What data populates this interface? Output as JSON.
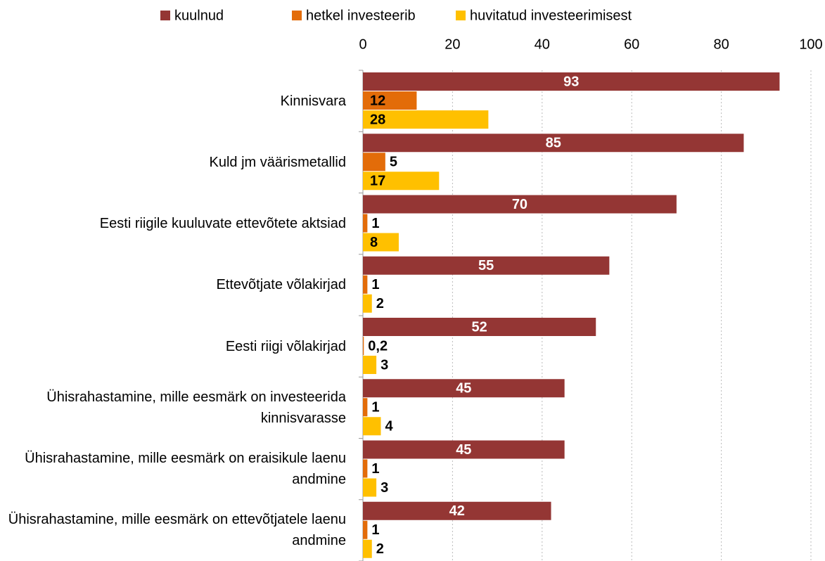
{
  "chart_data": {
    "type": "bar",
    "orientation": "horizontal",
    "categories": [
      "Kinnisvara",
      "Kuld jm väärismetallid",
      "Eesti riigile kuuluvate ettevõtete aktsiad",
      "Ettevõtjate võlakirjad",
      "Eesti riigi võlakirjad",
      "Ühisrahastamine, mille eesmärk on investeerida kinnisvarasse",
      "Ühisrahastamine, mille eesmärk on eraisikule laenu andmine",
      "Ühisrahastamine, mille eesmärk on ettevõtjatele laenu andmine"
    ],
    "series": [
      {
        "name": "kuulnud",
        "color": "#943634",
        "values": [
          93,
          85,
          70,
          55,
          52,
          45,
          45,
          42
        ]
      },
      {
        "name": "hetkel investeerib",
        "color": "#e36c09",
        "values": [
          12,
          5,
          1,
          1,
          0.2,
          1,
          1,
          1
        ],
        "value_labels": [
          "12",
          "5",
          "1",
          "1",
          "0,2",
          "1",
          "1",
          "1"
        ]
      },
      {
        "name": "huvitatud investeerimisest",
        "color": "#ffc000",
        "values": [
          28,
          17,
          8,
          2,
          3,
          4,
          3,
          2
        ]
      }
    ],
    "xlim": [
      0,
      100
    ],
    "xticks": [
      0,
      20,
      40,
      60,
      80,
      100
    ],
    "grid": true,
    "legend": "top"
  }
}
